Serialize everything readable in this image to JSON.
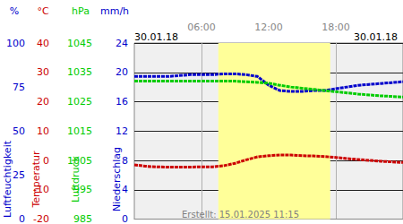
{
  "chart_data": {
    "type": "line",
    "date_labels": [
      "30.01.18",
      "30.01.18"
    ],
    "footer": "Erstellt: 15.01.2025 11:15",
    "xlim": [
      0,
      24
    ],
    "xticks": [
      {
        "value": 6,
        "label": "06:00"
      },
      {
        "value": 12,
        "label": "12:00"
      },
      {
        "value": 18,
        "label": "18:00"
      }
    ],
    "grid": true,
    "daylight": [
      7.5,
      17.5
    ],
    "y_axes": [
      {
        "name": "Luftfeuchtigkeit",
        "unit": "%",
        "color": "#0000cc",
        "ylim": [
          0,
          100
        ],
        "yticks": [
          0,
          25,
          50,
          75,
          100
        ]
      },
      {
        "name": "Temperatur",
        "unit": "°C",
        "color": "#cc0000",
        "ylim": [
          -20,
          40
        ],
        "yticks": [
          -20,
          -10,
          0,
          10,
          20,
          30,
          40
        ]
      },
      {
        "name": "Luftdruck",
        "unit": "hPa",
        "color": "#00cc00",
        "ylim": [
          985,
          1045
        ],
        "yticks": [
          985,
          995,
          1005,
          1015,
          1025,
          1035,
          1045
        ]
      },
      {
        "name": "Niederschlag",
        "unit": "mm/h",
        "color": "#0000cc",
        "ylim": [
          0,
          24
        ],
        "yticks": [
          0,
          4,
          8,
          12,
          16,
          20,
          24
        ]
      }
    ],
    "x": [
      0,
      1,
      2,
      3,
      4,
      5,
      6,
      7,
      8,
      9,
      10,
      11,
      12,
      13,
      14,
      15,
      16,
      17,
      18,
      19,
      20,
      21,
      22,
      23,
      24
    ],
    "series": [
      {
        "name": "Luftfeuchtigkeit",
        "axis": 0,
        "color": "#0000cc",
        "line_style": "dashed",
        "values": [
          81,
          81,
          81,
          81,
          81.5,
          82,
          82,
          82,
          82.5,
          82.5,
          82,
          81,
          76,
          73,
          72.5,
          72.5,
          73,
          73,
          74,
          75,
          76,
          76.5,
          77,
          77.5,
          78
        ]
      },
      {
        "name": "Temperatur",
        "axis": 1,
        "color": "#cc0000",
        "line_style": "dashed",
        "values": [
          -1.5,
          -2,
          -2.2,
          -2.3,
          -2.3,
          -2.3,
          -2.2,
          -2.2,
          -1.8,
          -1,
          0.2,
          1.2,
          1.6,
          1.8,
          1.8,
          1.6,
          1.5,
          1.3,
          1,
          0.6,
          0.3,
          0,
          -0.3,
          -0.5,
          -0.7
        ]
      },
      {
        "name": "Luftdruck",
        "axis": 2,
        "color": "#00cc00",
        "line_style": "dashed",
        "values": [
          1032,
          1032,
          1032,
          1032,
          1032,
          1032,
          1032,
          1032,
          1032,
          1032,
          1031.8,
          1031.6,
          1031.3,
          1030.6,
          1030,
          1029.6,
          1029.2,
          1028.8,
          1028.4,
          1028,
          1027.6,
          1027.3,
          1027,
          1026.8,
          1026.6
        ]
      }
    ]
  }
}
